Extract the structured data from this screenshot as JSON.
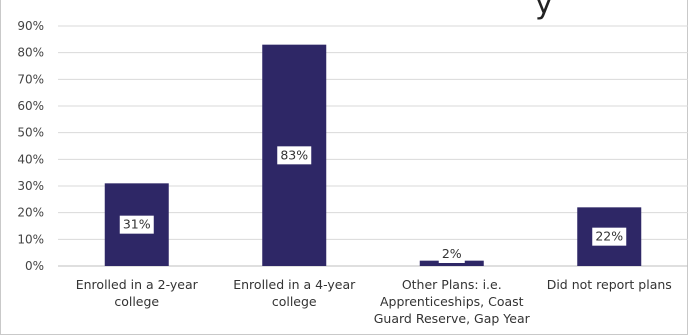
{
  "chart_data": {
    "type": "bar",
    "title_fragment": "y",
    "categories": [
      [
        "Enrolled in a 2-year",
        "college"
      ],
      [
        "Enrolled in a 4-year",
        "college"
      ],
      [
        "Other Plans: i.e.",
        "Apprenticeships, Coast",
        "Guard Reserve, Gap Year"
      ],
      [
        "Did not report plans"
      ]
    ],
    "values": [
      31,
      83,
      2,
      22
    ],
    "data_labels": [
      "31%",
      "83%",
      "2%",
      "22%"
    ],
    "y_ticks": [
      "0%",
      "10%",
      "20%",
      "30%",
      "40%",
      "50%",
      "60%",
      "70%",
      "80%",
      "90%"
    ],
    "ylim": [
      0,
      90
    ],
    "grid": true,
    "colors": {
      "bar": "#2e2766",
      "grid": "#d9d9d9",
      "label_bg": "#ffffff"
    }
  }
}
